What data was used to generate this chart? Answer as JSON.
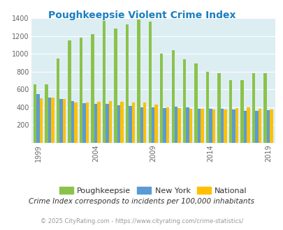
{
  "title": "Poughkeepsie Violent Crime Index",
  "title_color": "#1a7fc1",
  "subtitle": "Crime Index corresponds to incidents per 100,000 inhabitants",
  "footer": "© 2025 CityRating.com - https://www.cityrating.com/crime-statistics/",
  "years": [
    1999,
    2000,
    2001,
    2002,
    2003,
    2004,
    2005,
    2006,
    2007,
    2008,
    2009,
    2010,
    2011,
    2012,
    2013,
    2014,
    2015,
    2016,
    2017,
    2018,
    2019
  ],
  "poughkeepsie": [
    660,
    660,
    950,
    1155,
    1185,
    1220,
    1370,
    1285,
    1330,
    1390,
    1365,
    1000,
    1040,
    940,
    895,
    800,
    780,
    700,
    700,
    780,
    780
  ],
  "new_york": [
    545,
    510,
    490,
    470,
    445,
    440,
    435,
    420,
    410,
    400,
    395,
    390,
    405,
    395,
    385,
    380,
    380,
    375,
    360,
    360,
    370
  ],
  "national": [
    500,
    505,
    495,
    455,
    450,
    460,
    470,
    460,
    450,
    455,
    430,
    400,
    390,
    385,
    385,
    375,
    375,
    390,
    400,
    380,
    375
  ],
  "poughkeepsie_color": "#8bc34a",
  "new_york_color": "#5b9bd5",
  "national_color": "#ffc000",
  "plot_bg_color": "#ddeef3",
  "ylim": [
    0,
    1400
  ],
  "yticks": [
    0,
    200,
    400,
    600,
    800,
    1000,
    1200,
    1400
  ],
  "xlabel_years": [
    1999,
    2004,
    2009,
    2014,
    2019
  ],
  "bar_width": 0.27,
  "legend_labels": [
    "Poughkeepsie",
    "New York",
    "National"
  ]
}
